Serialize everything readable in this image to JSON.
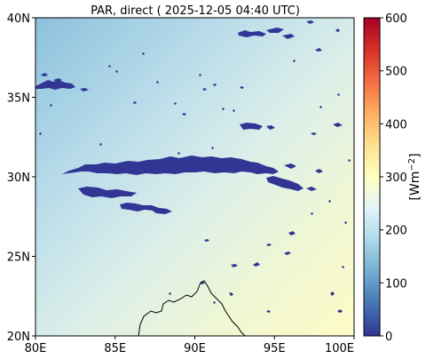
{
  "title": "PAR, direct ( 2025-12-05 04:40 UTC)",
  "x_ticks": [
    "80E",
    "85E",
    "90E",
    "95E",
    "100E"
  ],
  "y_ticks": [
    "20N",
    "25N",
    "30N",
    "35N",
    "40N"
  ],
  "colorbar": {
    "label": "[Wm",
    "label_superscript": "−2",
    "label_close": "]",
    "ticks": [
      "0",
      "100",
      "200",
      "300",
      "400",
      "500",
      "600"
    ],
    "range": [
      0,
      600
    ],
    "colormap": "RdYlBu_r"
  },
  "map": {
    "extent_lon": [
      80,
      100
    ],
    "extent_lat": [
      20,
      40
    ],
    "background_gradient": "light blue in north-west to pale yellow in south-east",
    "cloud_color": "#313695",
    "coastline_color": "#000000"
  }
}
